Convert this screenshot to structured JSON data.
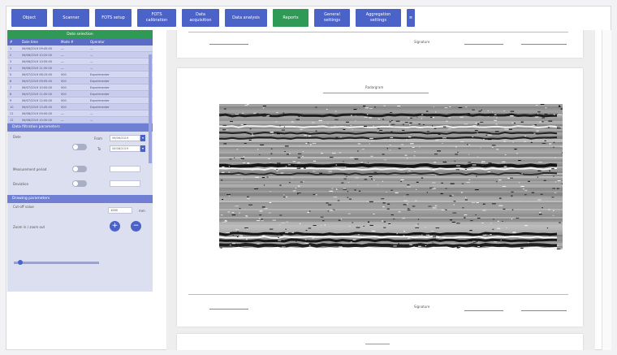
{
  "nav": {
    "buttons": [
      {
        "label": "Object"
      },
      {
        "label": "Scanner"
      },
      {
        "label": "FOTS setup"
      },
      {
        "label": "FOTS\ncalibration"
      },
      {
        "label": "Data\nacquisition"
      },
      {
        "label": "Data analysis"
      },
      {
        "label": "Reports"
      },
      {
        "label": "General\nsettings"
      },
      {
        "label": "Aggregation\nsettings"
      },
      {
        "label": "≡"
      }
    ],
    "active": "Reports"
  },
  "dates": {
    "header": "Date selection",
    "columns": [
      "#",
      "Date time",
      "Mode #",
      "Operator"
    ],
    "rows": [
      [
        "1",
        "06/06/2019 09:45:00",
        "—",
        "—"
      ],
      [
        "2",
        "06/06/2019 10:20:00",
        "—",
        "—"
      ],
      [
        "3",
        "06/06/2019 10:55:00",
        "—",
        "—"
      ],
      [
        "4",
        "06/06/2019 11:30:00",
        "—",
        "—"
      ],
      [
        "5",
        "06/07/2019 08:15:00",
        "500",
        "Experimenter"
      ],
      [
        "6",
        "06/07/2019 09:05:00",
        "500",
        "Experimenter"
      ],
      [
        "7",
        "06/07/2019 10:00:00",
        "500",
        "Experimenter"
      ],
      [
        "8",
        "06/07/2019 11:00:00",
        "500",
        "Experimenter"
      ],
      [
        "9",
        "06/07/2019 12:00:00",
        "500",
        "Experimenter"
      ],
      [
        "10",
        "06/07/2019 13:45:00",
        "500",
        "Experimenter"
      ],
      [
        "11",
        "06/08/2019 09:00:00",
        "—",
        "—"
      ],
      [
        "12",
        "06/08/2019 10:30:00",
        "—",
        "—"
      ]
    ]
  },
  "filters": {
    "header": "Data filtration parameters",
    "time_label": "Date",
    "from_label": "From",
    "to_label": "To",
    "from_value": "06/06/2019",
    "to_value": "06/08/2019",
    "period_label": "Measurement period",
    "deviation_label": "Deviation"
  },
  "display": {
    "header": "Drawing parameters",
    "cutoff_label": "Cut-off value",
    "cutoff_value": "1000",
    "cutoff_unit": "mm",
    "zoom_label": "Zoom in / zoom out",
    "cutoff_fraction": 0.05
  },
  "report": {
    "signature_label": "Signature",
    "card_title": "Radargram"
  },
  "colors": {
    "nav": "#4b63c8",
    "active": "#2f9a55",
    "panel": "#dcdff0"
  }
}
